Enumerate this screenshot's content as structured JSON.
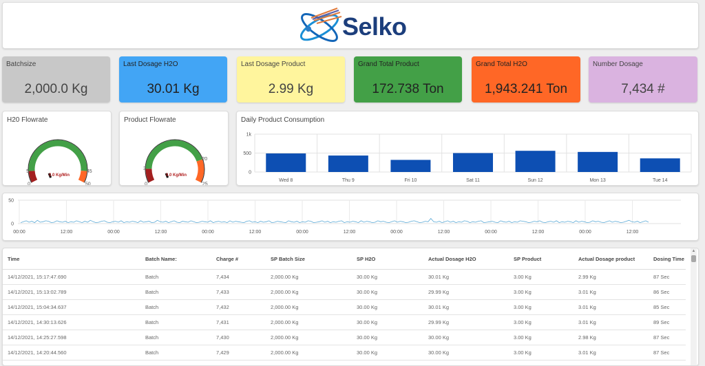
{
  "header": {
    "logo_text": "Selko"
  },
  "tiles": [
    {
      "title": "Batchsize",
      "value": "2,000.0 Kg",
      "color": "#c8c8c8"
    },
    {
      "title": "Last Dosage H2O",
      "value": "30.01 Kg",
      "color": "#42a5f5"
    },
    {
      "title": "Last Dosage Product",
      "value": "2.99 Kg",
      "color": "#fff59d"
    },
    {
      "title": "Grand Total Product",
      "value": "172.738 Ton",
      "color": "#43a047"
    },
    {
      "title": "Grand Total H2O",
      "value": "1,943.241 Ton",
      "color": "#ff6726"
    },
    {
      "title": "Number Dosage",
      "value": "7,434 #",
      "color": "#dab3e0"
    }
  ],
  "gauges": {
    "h2o": {
      "title": "H20 Flowrate",
      "value_label": "0.0 Kg/Min",
      "min": "0",
      "low": "5",
      "high": "45",
      "max": "50",
      "value": 0
    },
    "product": {
      "title": "Product Flowrate",
      "value_label": "0.0 Kg/Min",
      "min": "0",
      "low": "3",
      "high": "20",
      "max": "25",
      "value": 0
    }
  },
  "chart_data": [
    {
      "type": "bar",
      "title": "Daily Product Consumption",
      "categories": [
        "Wed 8",
        "Thu 9",
        "Fri 10",
        "Sat 11",
        "Sun 12",
        "Mon 13",
        "Tue 14"
      ],
      "values": [
        490,
        435,
        320,
        500,
        560,
        530,
        360
      ],
      "ylim": [
        0,
        1000
      ],
      "yticks": [
        "0",
        "500",
        "1k"
      ],
      "color": "#0d4fb3"
    },
    {
      "type": "line",
      "title": "",
      "ylim": [
        0,
        50
      ],
      "yticks": [
        "0",
        "50"
      ],
      "xticks": [
        "00:00",
        "12:00",
        "00:00",
        "12:00",
        "00:00",
        "12:00",
        "00:00",
        "12:00",
        "00:00",
        "12:00",
        "00:00",
        "12:00",
        "00:00",
        "12:00"
      ],
      "values": [
        2,
        4,
        6,
        3,
        5,
        2,
        7,
        3,
        4,
        6,
        5,
        2,
        3,
        6,
        4,
        3,
        5,
        2,
        4,
        3,
        6,
        4,
        2,
        5,
        3,
        7,
        4,
        2,
        3,
        5,
        6,
        3,
        2,
        4,
        5,
        3,
        6,
        2,
        4,
        3,
        5,
        4,
        2,
        6,
        3,
        4,
        5,
        2,
        3,
        7,
        4,
        3,
        5,
        2,
        4,
        6,
        3,
        2,
        5,
        4,
        3,
        6,
        4,
        2,
        3,
        5,
        4,
        3,
        6,
        2,
        4,
        5,
        3,
        4,
        2,
        6,
        3,
        5,
        4,
        3,
        2,
        5,
        6,
        3,
        4,
        2,
        5,
        3,
        4,
        6,
        2,
        3,
        5,
        4,
        3,
        2,
        6,
        4,
        3,
        5,
        2,
        4,
        3,
        6,
        5,
        2,
        3,
        4,
        6,
        3,
        5,
        2,
        4,
        3,
        5,
        6,
        2,
        4,
        3,
        5,
        4,
        2,
        6,
        3,
        5,
        4,
        2,
        3,
        6,
        4,
        5,
        3,
        2,
        4,
        6,
        3,
        5,
        4,
        2,
        3,
        5,
        6,
        4,
        2,
        3,
        5,
        4,
        11,
        4,
        3,
        5,
        2,
        4,
        6,
        3,
        5,
        2,
        4,
        3,
        6,
        5,
        2,
        4,
        3,
        5,
        6,
        2,
        3,
        4,
        5,
        3,
        2,
        6,
        4,
        3,
        5,
        2,
        4,
        3,
        6,
        5,
        4,
        2,
        3,
        5,
        4,
        6,
        3,
        2,
        4,
        5,
        3,
        6,
        2,
        4,
        3,
        5,
        4,
        2,
        6,
        3,
        5,
        4,
        2,
        3,
        6,
        4,
        5,
        3,
        2,
        4,
        6,
        3,
        5,
        4,
        2,
        3,
        5,
        7,
        4,
        3,
        5,
        2,
        4,
        6,
        3
      ],
      "color": "#5aa9d6"
    }
  ],
  "table": {
    "headers": [
      "Time",
      "Batch Name:",
      "Charge #",
      "SP Batch Size",
      "SP H2O",
      "Actual Dosage H2O",
      "SP Product",
      "Actual Dosage product",
      "Dosing Time"
    ],
    "rows": [
      [
        "14/12/2021, 15:17:47.690",
        "Batch",
        "7,434",
        "2,000.00 Kg",
        "30.00 Kg",
        "30.01 Kg",
        "3.00 Kg",
        "2.99 Kg",
        "87 Sec"
      ],
      [
        "14/12/2021, 15:13:02.789",
        "Batch",
        "7,433",
        "2,000.00 Kg",
        "30.00 Kg",
        "29.99 Kg",
        "3.00 Kg",
        "3.01 Kg",
        "86 Sec"
      ],
      [
        "14/12/2021, 15:04:34.637",
        "Batch",
        "7,432",
        "2,000.00 Kg",
        "30.00 Kg",
        "30.01 Kg",
        "3.00 Kg",
        "3.01 Kg",
        "85 Sec"
      ],
      [
        "14/12/2021, 14:30:13.626",
        "Batch",
        "7,431",
        "2,000.00 Kg",
        "30.00 Kg",
        "29.99 Kg",
        "3.00 Kg",
        "3.01 Kg",
        "89 Sec"
      ],
      [
        "14/12/2021, 14:25:27.598",
        "Batch",
        "7,430",
        "2,000.00 Kg",
        "30.00 Kg",
        "30.00 Kg",
        "3.00 Kg",
        "2.98 Kg",
        "87 Sec"
      ],
      [
        "14/12/2021, 14:20:44.560",
        "Batch",
        "7,429",
        "2,000.00 Kg",
        "30.00 Kg",
        "30.00 Kg",
        "3.00 Kg",
        "3.01 Kg",
        "87 Sec"
      ]
    ]
  }
}
